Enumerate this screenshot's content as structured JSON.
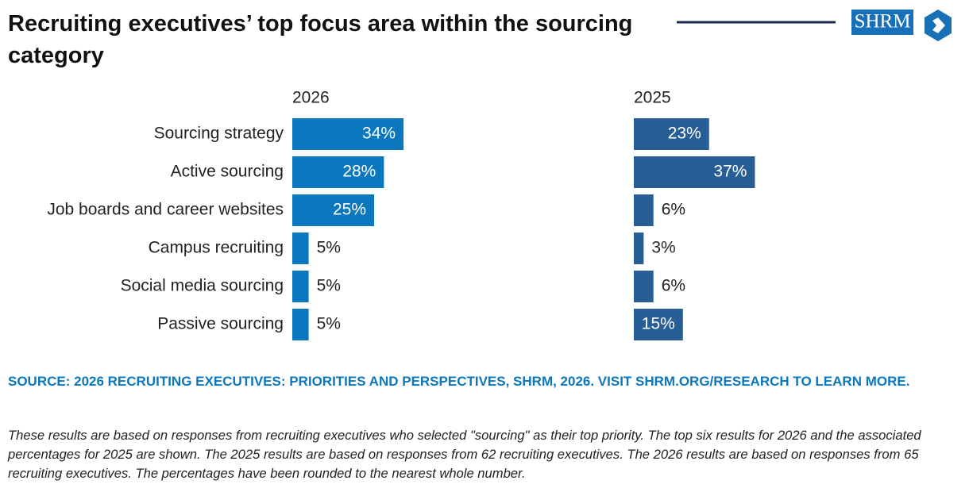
{
  "header": {
    "title": "Recruiting executives’ top focus area within the sourcing category",
    "logo": "SHRM"
  },
  "chart_data": [
    {
      "type": "bar",
      "orientation": "horizontal",
      "title": "2026",
      "color": "#0b77be",
      "categories": [
        "Sourcing strategy",
        "Active sourcing",
        "Job boards and career websites",
        "Campus recruiting",
        "Social media sourcing",
        "Passive sourcing"
      ],
      "values": [
        34,
        28,
        25,
        5,
        5,
        5
      ],
      "value_labels": [
        "34%",
        "28%",
        "25%",
        "5%",
        "5%",
        "5%"
      ]
    },
    {
      "type": "bar",
      "orientation": "horizontal",
      "title": "2025",
      "color": "#265e95",
      "values": [
        23,
        37,
        6,
        3,
        6,
        15
      ],
      "value_labels": [
        "23%",
        "37%",
        "6%",
        "3%",
        "6%",
        "15%"
      ]
    }
  ],
  "footer": {
    "source": "SOURCE: 2026 RECRUITING EXECUTIVES: PRIORITIES AND PERSPECTIVES, SHRM, 2026. VISIT SHRM.ORG/RESEARCH TO LEARN MORE.",
    "note": "These results are based on responses from recruiting executives who selected \"sourcing\" as their top priority. The top six results for 2026 and the associated percentages for 2025 are shown. The 2025 results are based on responses from 62 recruiting executives. The 2026 results are based on responses from 65 recruiting executives. The percentages have been rounded to the nearest whole number."
  }
}
